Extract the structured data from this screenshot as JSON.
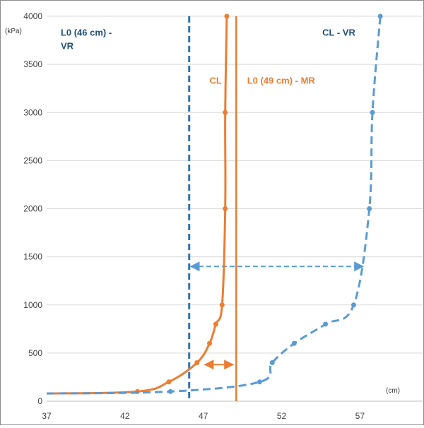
{
  "chart_data": {
    "type": "line",
    "title": "",
    "xlabel": "",
    "ylabel": "",
    "x_unit": "(cm)",
    "y_unit": "(kPa)",
    "xlim": [
      37,
      61
    ],
    "ylim": [
      0,
      4000
    ],
    "x_ticks": [
      37,
      42,
      47,
      52,
      57
    ],
    "y_ticks": [
      0,
      500,
      1000,
      1500,
      2000,
      2500,
      3000,
      3500,
      4000
    ],
    "grid": "horizontal",
    "colors": {
      "orange": "#ED7D31",
      "blue_dashed": "#5B9BD5",
      "blue_dark": "#2E75B6",
      "label_dark": "#1F4E79"
    },
    "series": [
      {
        "name": "CL",
        "style": "solid",
        "color": "#ED7D31",
        "x": [
          37,
          42.8,
          44.8,
          46.6,
          47.4,
          47.8,
          48.2,
          48.4,
          48.4,
          48.5
        ],
        "y": [
          80,
          100,
          200,
          400,
          600,
          800,
          1000,
          2000,
          3000,
          4000
        ],
        "marked": [
          false,
          true,
          true,
          true,
          true,
          true,
          true,
          true,
          true,
          true
        ]
      },
      {
        "name": "CL - VR",
        "style": "dashed",
        "color": "#5B9BD5",
        "x": [
          37,
          44.9,
          50.6,
          51.4,
          52.8,
          54.8,
          56.6,
          57.6,
          57.8,
          58.3
        ],
        "y": [
          80,
          100,
          200,
          400,
          600,
          800,
          1000,
          2000,
          3000,
          4000
        ],
        "marked": [
          false,
          true,
          true,
          true,
          true,
          true,
          true,
          true,
          true,
          true
        ]
      }
    ],
    "reference_lines": [
      {
        "label": "L0 (46 cm) - VR",
        "x": 46.1,
        "style": "dashed",
        "color": "#2E75B6"
      },
      {
        "label": "L0 (49 cm) - MR",
        "x": 49.1,
        "style": "solid",
        "color": "#ED7D31"
      }
    ],
    "arrows": [
      {
        "y": 1400,
        "x_from": 46.2,
        "x_to": 57.2,
        "color": "#5B9BD5",
        "style": "dashed"
      },
      {
        "y": 380,
        "x_from": 47.1,
        "x_to": 48.9,
        "color": "#ED7D31",
        "style": "solid"
      }
    ],
    "annotations": [
      {
        "lines": [
          "L0 (46 cm) -",
          "VR"
        ],
        "x": 37.9,
        "y": 3800,
        "color": "#1F4E79"
      },
      {
        "lines": [
          "CL"
        ],
        "x": 47.4,
        "y": 3300,
        "color": "#ED7D31"
      },
      {
        "lines": [
          "L0 (49 cm) - MR"
        ],
        "x": 49.8,
        "y": 3300,
        "color": "#ED7D31"
      },
      {
        "lines": [
          "CL - VR"
        ],
        "x": 54.6,
        "y": 3800,
        "color": "#1F4E79"
      }
    ]
  }
}
